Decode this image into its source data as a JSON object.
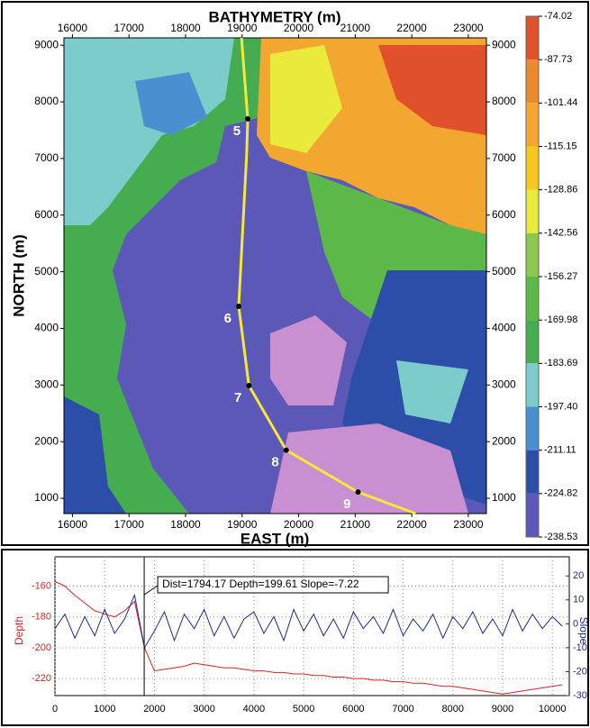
{
  "chart_data": [
    {
      "type": "map",
      "title": "BATHYMETRY (m)",
      "x_label": "EAST (m)",
      "y_label": "NORTH (m)",
      "xlim": [
        15850,
        23320
      ],
      "ylim": [
        730,
        9130
      ],
      "xticks": [
        16000,
        17000,
        18000,
        19000,
        20000,
        21000,
        22000,
        23000
      ],
      "yticks": [
        1000,
        2000,
        3000,
        4000,
        5000,
        6000,
        7000,
        8000,
        9000
      ],
      "track": {
        "color": "#f5e83a",
        "x": [
          18990,
          19100,
          19080,
          18940,
          19120,
          19780,
          21050,
          22070
        ],
        "y": [
          9130,
          7700,
          7060,
          4390,
          2990,
          1850,
          1110,
          730
        ]
      },
      "waypoints": [
        {
          "label": "5",
          "x": 19100,
          "y": 7700
        },
        {
          "label": "6",
          "x": 18940,
          "y": 4390
        },
        {
          "label": "7",
          "x": 19120,
          "y": 2990
        },
        {
          "label": "8",
          "x": 19780,
          "y": 1850
        },
        {
          "label": "9",
          "x": 21050,
          "y": 1110
        }
      ],
      "colorbar": {
        "clim": [
          -238.53,
          -74.02
        ],
        "ticks": [
          -74.02,
          -87.73,
          -101.44,
          -115.15,
          -128.86,
          -142.56,
          -156.27,
          -169.98,
          -183.69,
          {
            "value": -197.4,
            "label": "-197.40"
          },
          -211.11,
          -224.82,
          -238.53
        ],
        "colors": [
          "#e0502a",
          "#ec8a2e",
          "#f2a830",
          "#f5c81e",
          "#eaea3c",
          "#8cc850",
          "#5cb848",
          "#46ac50",
          "#7ccccc",
          "#4a90d0",
          "#2c4ea8",
          "#5c58b8",
          "#c890d0"
        ]
      }
    },
    {
      "type": "line",
      "xlim": [
        0,
        10340
      ],
      "ylim": [
        -231,
        -141
      ],
      "y2lim": [
        -30,
        28
      ],
      "xticks": [
        0,
        1000,
        2000,
        3000,
        4000,
        5000,
        6000,
        7000,
        8000,
        9000,
        10000
      ],
      "yticks": [
        -160,
        -180,
        -200,
        -220
      ],
      "y2ticks": [
        20,
        10,
        0,
        -10,
        -20,
        -30
      ],
      "grid": true,
      "x": [
        0,
        200,
        400,
        600,
        800,
        1000,
        1200,
        1400,
        1600,
        1800,
        2000,
        2200,
        2400,
        2600,
        2800,
        3000,
        3200,
        3400,
        3600,
        3800,
        4000,
        4200,
        4400,
        4600,
        4800,
        5000,
        5200,
        5400,
        5600,
        5800,
        6000,
        6200,
        6400,
        6600,
        6800,
        7000,
        7200,
        7400,
        7600,
        7800,
        8000,
        8200,
        8400,
        8600,
        8800,
        9000,
        9200,
        9400,
        9600,
        9800,
        10000,
        10200
      ],
      "series": [
        {
          "name": "Depth",
          "color": "#e02020",
          "values": [
            -157,
            -160,
            -166,
            -171,
            -176,
            -178,
            -180,
            -176,
            -170,
            -200,
            -215,
            -214,
            -213,
            -212,
            -210,
            -211,
            -212,
            -213,
            -213,
            -214,
            -215,
            -215,
            -216,
            -216,
            -217,
            -217,
            -218,
            -218,
            -219,
            -219,
            -220,
            -220,
            -221,
            -221,
            -222,
            -222,
            -223,
            -223,
            -224,
            -225,
            -225,
            -226,
            -227,
            -228,
            -229,
            -230,
            -229,
            -228,
            -227,
            -226,
            -225,
            -224
          ]
        },
        {
          "name": "Slope",
          "color": "#1a2a9a",
          "axis": "y2",
          "values": [
            -2,
            4,
            -6,
            3,
            -5,
            6,
            -4,
            2,
            12,
            -10,
            -3,
            5,
            -7,
            4,
            -2,
            6,
            -5,
            3,
            -6,
            2,
            5,
            -4,
            3,
            -7,
            6,
            -3,
            4,
            -5,
            2,
            -6,
            5,
            -2,
            3,
            -4,
            6,
            -5,
            2,
            -3,
            4,
            -6,
            3,
            -2,
            5,
            -4,
            2,
            -5,
            6,
            -3,
            4,
            -2,
            3,
            -1
          ]
        }
      ],
      "cursor": {
        "x": 1794.17,
        "label": "Dist=1794.17 Depth=199.61 Slope=-7.22"
      }
    }
  ]
}
